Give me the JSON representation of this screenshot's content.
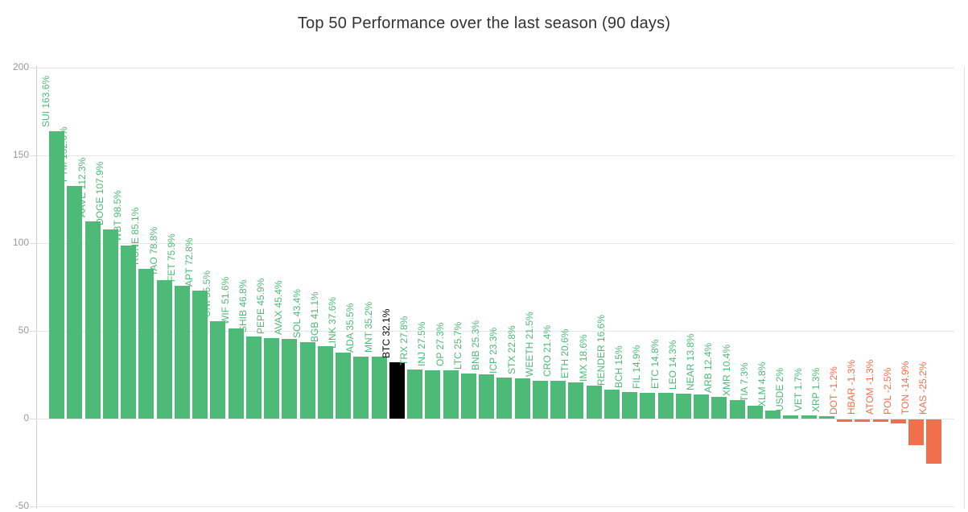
{
  "header": {
    "title": "Top 50 Performance over the last season (90 days)"
  },
  "chart_data": {
    "type": "bar",
    "title": "Top 50 Performance over the last season (90 days)",
    "xlabel": "",
    "ylabel": "",
    "ylim": [
      -50,
      200
    ],
    "ytick_labels": [
      "200",
      "150",
      "100",
      "50",
      "0",
      "-50"
    ],
    "grid": true,
    "legend_position": "none",
    "colors": {
      "positive": "#4dba77",
      "negative": "#f06f4d",
      "highlight": "#000000",
      "gridline": "#e6e6e6",
      "axis_line": "#cccccc",
      "tick_label": "#999999",
      "title_text": "#333333"
    },
    "points": [
      {
        "symbol": "SUI",
        "value": 163.6,
        "label": "SUI 163.6%",
        "color": "positive"
      },
      {
        "symbol": "FTM",
        "value": 132.6,
        "label": "FTM 132.6%",
        "color": "positive"
      },
      {
        "symbol": "AAVE",
        "value": 112.3,
        "label": "AAVE 112.3%",
        "color": "positive"
      },
      {
        "symbol": "DOGE",
        "value": 107.9,
        "label": "DOGE 107.9%",
        "color": "positive"
      },
      {
        "symbol": "WBT",
        "value": 98.5,
        "label": "WBT 98.5%",
        "color": "positive"
      },
      {
        "symbol": "RUNE",
        "value": 85.1,
        "label": "RUNE 85.1%",
        "color": "positive"
      },
      {
        "symbol": "TAO",
        "value": 78.8,
        "label": "TAO 78.8%",
        "color": "positive"
      },
      {
        "symbol": "FET",
        "value": 75.9,
        "label": "FET 75.9%",
        "color": "positive"
      },
      {
        "symbol": "APT",
        "value": 72.8,
        "label": "APT 72.8%",
        "color": "positive"
      },
      {
        "symbol": "UNI",
        "value": 55.5,
        "label": "UNI 55.5%",
        "color": "positive"
      },
      {
        "symbol": "WIF",
        "value": 51.6,
        "label": "WIF 51.6%",
        "color": "positive"
      },
      {
        "symbol": "SHIB",
        "value": 46.8,
        "label": "SHIB 46.8%",
        "color": "positive"
      },
      {
        "symbol": "PEPE",
        "value": 45.9,
        "label": "PEPE 45.9%",
        "color": "positive"
      },
      {
        "symbol": "AVAX",
        "value": 45.4,
        "label": "AVAX 45.4%",
        "color": "positive"
      },
      {
        "symbol": "SOL",
        "value": 43.4,
        "label": "SOL 43.4%",
        "color": "positive"
      },
      {
        "symbol": "BGB",
        "value": 41.1,
        "label": "BGB 41.1%",
        "color": "positive"
      },
      {
        "symbol": "LINK",
        "value": 37.6,
        "label": "LINK 37.6%",
        "color": "positive"
      },
      {
        "symbol": "ADA",
        "value": 35.5,
        "label": "ADA 35.5%",
        "color": "positive"
      },
      {
        "symbol": "MNT",
        "value": 35.2,
        "label": "MNT 35.2%",
        "color": "positive"
      },
      {
        "symbol": "BTC",
        "value": 32.1,
        "label": "BTC 32.1%",
        "color": "highlight"
      },
      {
        "symbol": "TRX",
        "value": 27.8,
        "label": "TRX 27.8%",
        "color": "positive"
      },
      {
        "symbol": "INJ",
        "value": 27.5,
        "label": "INJ 27.5%",
        "color": "positive"
      },
      {
        "symbol": "OP",
        "value": 27.3,
        "label": "OP 27.3%",
        "color": "positive"
      },
      {
        "symbol": "LTC",
        "value": 25.7,
        "label": "LTC 25.7%",
        "color": "positive"
      },
      {
        "symbol": "BNB",
        "value": 25.3,
        "label": "BNB 25.3%",
        "color": "positive"
      },
      {
        "symbol": "ICP",
        "value": 23.3,
        "label": "ICP 23.3%",
        "color": "positive"
      },
      {
        "symbol": "STX",
        "value": 22.8,
        "label": "STX 22.8%",
        "color": "positive"
      },
      {
        "symbol": "WEETH",
        "value": 21.5,
        "label": "WEETH 21.5%",
        "color": "positive"
      },
      {
        "symbol": "CRO",
        "value": 21.4,
        "label": "CRO 21.4%",
        "color": "positive"
      },
      {
        "symbol": "ETH",
        "value": 20.6,
        "label": "ETH 20.6%",
        "color": "positive"
      },
      {
        "symbol": "IMX",
        "value": 18.6,
        "label": "IMX 18.6%",
        "color": "positive"
      },
      {
        "symbol": "RENDER",
        "value": 16.6,
        "label": "RENDER 16.6%",
        "color": "positive"
      },
      {
        "symbol": "BCH",
        "value": 15,
        "label": "BCH 15%",
        "color": "positive"
      },
      {
        "symbol": "FIL",
        "value": 14.9,
        "label": "FIL 14.9%",
        "color": "positive"
      },
      {
        "symbol": "ETC",
        "value": 14.8,
        "label": "ETC 14.8%",
        "color": "positive"
      },
      {
        "symbol": "LEO",
        "value": 14.3,
        "label": "LEO 14.3%",
        "color": "positive"
      },
      {
        "symbol": "NEAR",
        "value": 13.8,
        "label": "NEAR 13.8%",
        "color": "positive"
      },
      {
        "symbol": "ARB",
        "value": 12.4,
        "label": "ARB 12.4%",
        "color": "positive"
      },
      {
        "symbol": "XMR",
        "value": 10.4,
        "label": "XMR 10.4%",
        "color": "positive"
      },
      {
        "symbol": "TIA",
        "value": 7.3,
        "label": "TIA 7.3%",
        "color": "positive"
      },
      {
        "symbol": "XLM",
        "value": 4.8,
        "label": "XLM 4.8%",
        "color": "positive"
      },
      {
        "symbol": "USDE",
        "value": 2,
        "label": "USDE 2%",
        "color": "positive"
      },
      {
        "symbol": "VET",
        "value": 1.7,
        "label": "VET 1.7%",
        "color": "positive"
      },
      {
        "symbol": "XRP",
        "value": 1.3,
        "label": "XRP 1.3%",
        "color": "positive"
      },
      {
        "symbol": "DOT",
        "value": -1.2,
        "label": "DOT -1.2%",
        "color": "negative"
      },
      {
        "symbol": "HBAR",
        "value": -1.3,
        "label": "HBAR -1.3%",
        "color": "negative"
      },
      {
        "symbol": "ATOM",
        "value": -1.3,
        "label": "ATOM -1.3%",
        "color": "negative"
      },
      {
        "symbol": "POL",
        "value": -2.5,
        "label": "POL -2.5%",
        "color": "negative"
      },
      {
        "symbol": "TON",
        "value": -14.9,
        "label": "TON -14.9%",
        "color": "negative"
      },
      {
        "symbol": "KAS",
        "value": -25.2,
        "label": "KAS -25.2%",
        "color": "negative"
      }
    ]
  }
}
